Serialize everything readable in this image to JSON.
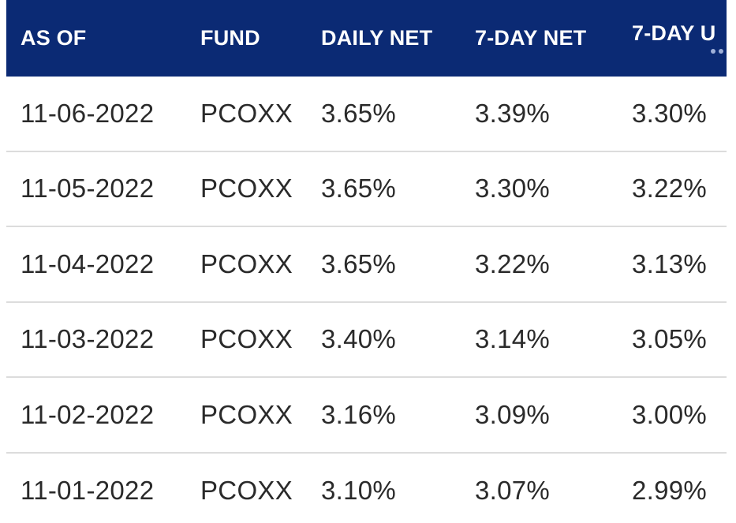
{
  "table": {
    "headers": [
      "AS OF",
      "FUND",
      "DAILY NET",
      "7-DAY NET",
      "7-DAY U"
    ],
    "rows": [
      [
        "11-06-2022",
        "PCOXX",
        "3.65%",
        "3.39%",
        "3.30%"
      ],
      [
        "11-05-2022",
        "PCOXX",
        "3.65%",
        "3.30%",
        "3.22%"
      ],
      [
        "11-04-2022",
        "PCOXX",
        "3.65%",
        "3.22%",
        "3.13%"
      ],
      [
        "11-03-2022",
        "PCOXX",
        "3.40%",
        "3.14%",
        "3.05%"
      ],
      [
        "11-02-2022",
        "PCOXX",
        "3.16%",
        "3.09%",
        "3.00%"
      ],
      [
        "11-01-2022",
        "PCOXX",
        "3.10%",
        "3.07%",
        "2.99%"
      ]
    ]
  },
  "colors": {
    "header_bg": "#0b2a74",
    "header_text": "#ffffff",
    "row_text": "#2a2a2a",
    "divider": "#dcdcdc"
  }
}
